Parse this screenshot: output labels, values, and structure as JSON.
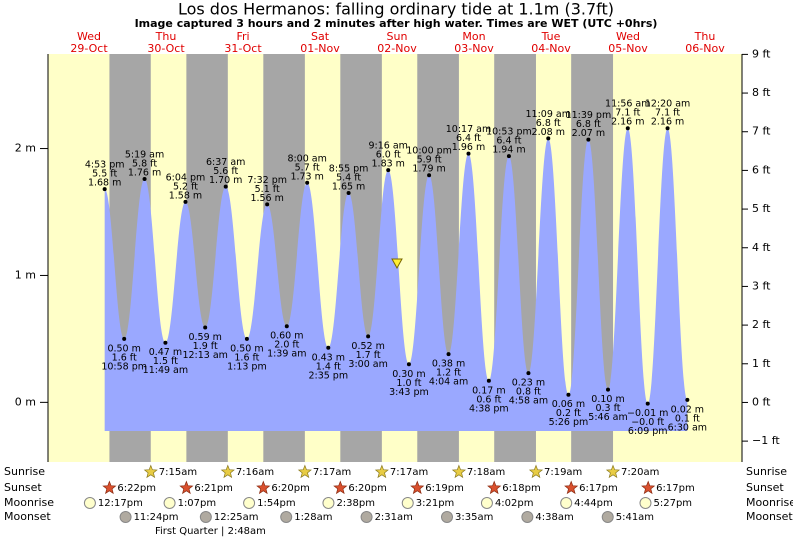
{
  "chart_data": {
    "type": "tide",
    "title": "Los dos Hermanos: falling  ordinary tide at 1.1m (3.7ft)",
    "subtitle": "Image captured 3 hours and 2 minutes after high water. Times are WET (UTC +0hrs)",
    "ylim": [
      -0.47,
      2.745
    ],
    "yticks": [
      {
        "value": 2,
        "label": "2 m"
      },
      {
        "value": 1,
        "label": "1 m"
      },
      {
        "value": 0,
        "label": "0 m"
      }
    ],
    "y2lim": [
      -1.54,
      9.01
    ],
    "y2ticks": [
      {
        "value": 9,
        "label": "9 ft"
      },
      {
        "value": 8,
        "label": "8 ft"
      },
      {
        "value": 7,
        "label": "7 ft"
      },
      {
        "value": 6,
        "label": "6 ft"
      },
      {
        "value": 5,
        "label": "5 ft"
      },
      {
        "value": 4,
        "label": "4 ft"
      },
      {
        "value": 3,
        "label": "3 ft"
      },
      {
        "value": 2,
        "label": "2 ft"
      },
      {
        "value": 1,
        "label": "1 ft"
      },
      {
        "value": 0,
        "label": "0 ft"
      },
      {
        "value": -1,
        "label": "−1 ft"
      }
    ],
    "rows": [
      "Sunrise",
      "Sunset",
      "Moonrise",
      "Moonset"
    ],
    "moon_phase": "First Quarter | 2:48am",
    "days": [
      {
        "weekday": "Wed",
        "date": "29-Oct",
        "sunset": "6:22pm",
        "moonrise": "12:17pm",
        "moonset": "11:24pm",
        "tides": [
          {
            "type": "high",
            "time": "4:53 pm",
            "ft_label": "5.5 ft",
            "m": 1.68,
            "m_label": "1.68 m"
          },
          {
            "type": "low",
            "time": "10:58 pm",
            "ft_label": "1.6 ft",
            "m": 0.5,
            "m_label": "0.50 m"
          }
        ]
      },
      {
        "weekday": "Thu",
        "date": "30-Oct",
        "sunrise": "7:15am",
        "sunset": "6:21pm",
        "moonrise": "1:07pm",
        "tides": [
          {
            "type": "high",
            "time": "5:19 am",
            "ft_label": "5.8 ft",
            "m": 1.76,
            "m_label": "1.76 m"
          },
          {
            "type": "low",
            "time": "11:49 am",
            "ft_label": "1.5 ft",
            "m": 0.47,
            "m_label": "0.47 m"
          },
          {
            "type": "high",
            "time": "6:04 pm",
            "ft_label": "5.2 ft",
            "m": 1.58,
            "m_label": "1.58 m"
          }
        ]
      },
      {
        "weekday": "Fri",
        "date": "31-Oct",
        "sunrise": "7:16am",
        "sunset": "6:20pm",
        "moonrise": "1:54pm",
        "moonset": "12:25am",
        "tides": [
          {
            "type": "low",
            "time": "12:13 am",
            "ft_label": "1.9 ft",
            "m": 0.59,
            "m_label": "0.59 m"
          },
          {
            "type": "high",
            "time": "6:37 am",
            "ft_label": "5.6 ft",
            "m": 1.7,
            "m_label": "1.70 m"
          },
          {
            "type": "low",
            "time": "1:13 pm",
            "ft_label": "1.6 ft",
            "m": 0.5,
            "m_label": "0.50 m"
          },
          {
            "type": "high",
            "time": "7:32 pm",
            "ft_label": "5.1 ft",
            "m": 1.56,
            "m_label": "1.56 m"
          }
        ]
      },
      {
        "weekday": "Sat",
        "date": "01-Nov",
        "sunrise": "7:17am",
        "sunset": "6:20pm",
        "moonrise": "2:38pm",
        "moonset": "1:28am",
        "tides": [
          {
            "type": "low",
            "time": "1:39 am",
            "ft_label": "2.0 ft",
            "m": 0.6,
            "m_label": "0.60 m"
          },
          {
            "type": "high",
            "time": "8:00 am",
            "ft_label": "5.7 ft",
            "m": 1.73,
            "m_label": "1.73 m"
          },
          {
            "type": "low",
            "time": "2:35 pm",
            "ft_label": "1.4 ft",
            "m": 0.43,
            "m_label": "0.43 m"
          },
          {
            "type": "high",
            "time": "8:55 pm",
            "ft_label": "5.4 ft",
            "m": 1.65,
            "m_label": "1.65 m"
          }
        ]
      },
      {
        "weekday": "Sun",
        "date": "02-Nov",
        "sunrise": "7:17am",
        "sunset": "6:19pm",
        "moonrise": "3:21pm",
        "moonset": "2:31am",
        "tides": [
          {
            "type": "low",
            "time": "3:00 am",
            "ft_label": "1.7 ft",
            "m": 0.52,
            "m_label": "0.52 m"
          },
          {
            "type": "high",
            "time": "9:16 am",
            "ft_label": "6.0 ft",
            "m": 1.83,
            "m_label": "1.83 m"
          },
          {
            "type": "low",
            "time": "3:43 pm",
            "ft_label": "1.0 ft",
            "m": 0.3,
            "m_label": "0.30 m"
          },
          {
            "type": "high",
            "time": "10:00 pm",
            "ft_label": "5.9 ft",
            "m": 1.79,
            "m_label": "1.79 m"
          }
        ]
      },
      {
        "weekday": "Mon",
        "date": "03-Nov",
        "sunrise": "7:18am",
        "sunset": "6:18pm",
        "moonrise": "4:02pm",
        "moonset": "3:35am",
        "tides": [
          {
            "type": "low",
            "time": "4:04 am",
            "ft_label": "1.2 ft",
            "m": 0.38,
            "m_label": "0.38 m"
          },
          {
            "type": "high",
            "time": "10:17 am",
            "ft_label": "6.4 ft",
            "m": 1.96,
            "m_label": "1.96 m"
          },
          {
            "type": "low",
            "time": "4:38 pm",
            "ft_label": "0.6 ft",
            "m": 0.17,
            "m_label": "0.17 m"
          },
          {
            "type": "high",
            "time": "10:53 pm",
            "ft_label": "6.4 ft",
            "m": 1.94,
            "m_label": "1.94 m"
          }
        ]
      },
      {
        "weekday": "Tue",
        "date": "04-Nov",
        "sunrise": "7:19am",
        "sunset": "6:17pm",
        "moonrise": "4:44pm",
        "moonset": "4:38am",
        "tides": [
          {
            "type": "low",
            "time": "4:58 am",
            "ft_label": "0.8 ft",
            "m": 0.23,
            "m_label": "0.23 m"
          },
          {
            "type": "high",
            "time": "11:09 am",
            "ft_label": "6.8 ft",
            "m": 2.08,
            "m_label": "2.08 m"
          },
          {
            "type": "low",
            "time": "5:26 pm",
            "ft_label": "0.2 ft",
            "m": 0.06,
            "m_label": "0.06 m"
          },
          {
            "type": "high",
            "time": "11:39 pm",
            "ft_label": "6.8 ft",
            "m": 2.07,
            "m_label": "2.07 m"
          }
        ]
      },
      {
        "weekday": "Wed",
        "date": "05-Nov",
        "sunrise": "7:20am",
        "sunset": "6:17pm",
        "moonrise": "5:27pm",
        "moonset": "5:41am",
        "tides": [
          {
            "type": "low",
            "time": "5:46 am",
            "ft_label": "0.3 ft",
            "m": 0.1,
            "m_label": "0.10 m"
          },
          {
            "type": "high",
            "time": "11:56 am",
            "ft_label": "7.1 ft",
            "m": 2.16,
            "m_label": "2.16 m"
          },
          {
            "type": "low",
            "time": "6:09 pm",
            "ft_label": "−0.0 ft",
            "m": -0.01,
            "m_label": "−0.01 m"
          }
        ]
      },
      {
        "weekday": "Thu",
        "date": "06-Nov",
        "tides": [
          {
            "type": "high",
            "time": "12:20 am",
            "ft_label": "7.1 ft",
            "m": 2.16,
            "m_label": "2.16 m"
          },
          {
            "type": "low",
            "time": "6:30 am",
            "ft_label": "0.1 ft",
            "m": 0.02,
            "m_label": "0.02 m"
          }
        ]
      }
    ]
  }
}
